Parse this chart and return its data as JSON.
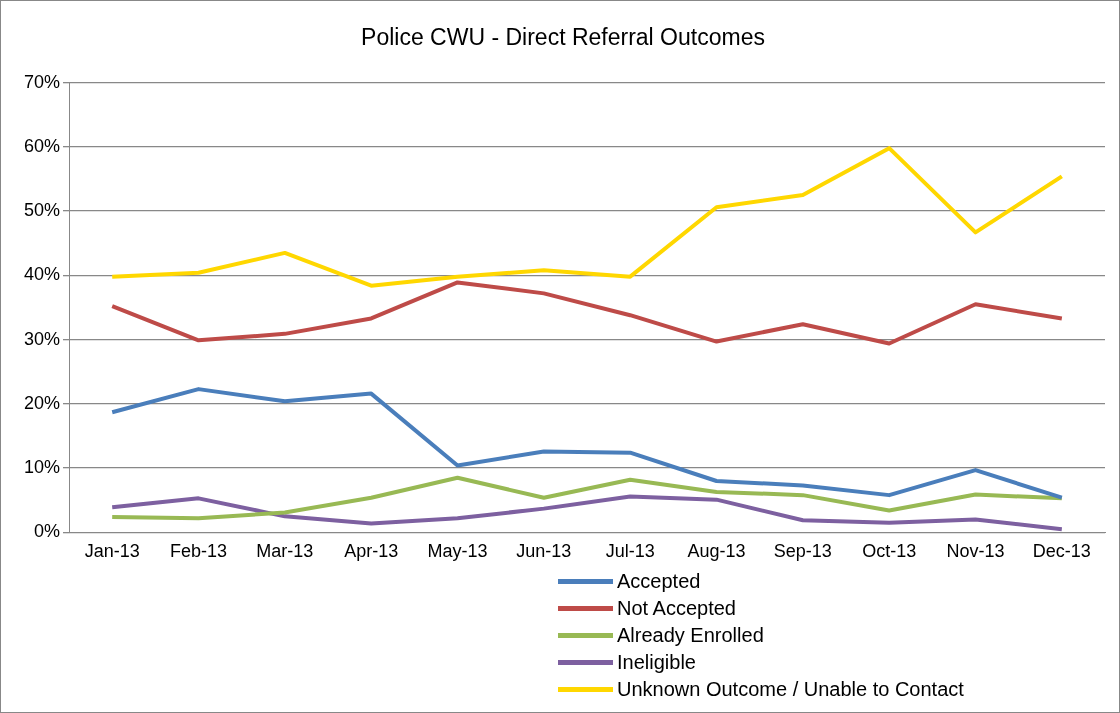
{
  "chart_data": {
    "type": "line",
    "title": "Police CWU - Direct Referral Outcomes",
    "categories": [
      "Jan-13",
      "Feb-13",
      "Mar-13",
      "Apr-13",
      "May-13",
      "Jun-13",
      "Jul-13",
      "Aug-13",
      "Sep-13",
      "Oct-13",
      "Nov-13",
      "Dec-13"
    ],
    "series": [
      {
        "name": "Accepted",
        "color": "#4a7ebb",
        "values": [
          18.7,
          22.3,
          20.4,
          21.6,
          10.4,
          12.6,
          12.4,
          8.0,
          7.3,
          5.8,
          9.7,
          5.4
        ]
      },
      {
        "name": "Not Accepted",
        "color": "#be4b48",
        "values": [
          35.2,
          29.9,
          30.9,
          33.3,
          38.9,
          37.2,
          33.8,
          29.7,
          32.4,
          29.4,
          35.5,
          33.3
        ]
      },
      {
        "name": "Already Enrolled",
        "color": "#98b954",
        "values": [
          2.4,
          2.2,
          3.1,
          5.4,
          8.5,
          5.4,
          8.2,
          6.3,
          5.8,
          3.4,
          5.9,
          5.3
        ]
      },
      {
        "name": "Ineligible",
        "color": "#7d60a0",
        "values": [
          3.9,
          5.3,
          2.5,
          1.4,
          2.2,
          3.7,
          5.6,
          5.1,
          1.9,
          1.5,
          2.0,
          0.5
        ]
      },
      {
        "name": "Unknown Outcome / Unable to Contact",
        "color": "#ffd700",
        "values": [
          39.8,
          40.4,
          43.5,
          38.4,
          39.8,
          40.8,
          39.8,
          50.6,
          52.5,
          59.8,
          46.7,
          55.4
        ]
      }
    ],
    "ylim": [
      0,
      70
    ],
    "yticks": [
      {
        "value": 0,
        "label": "0%"
      },
      {
        "value": 10,
        "label": "10%"
      },
      {
        "value": 20,
        "label": "20%"
      },
      {
        "value": 30,
        "label": "30%"
      },
      {
        "value": 40,
        "label": "40%"
      },
      {
        "value": 50,
        "label": "50%"
      },
      {
        "value": 60,
        "label": "60%"
      },
      {
        "value": 70,
        "label": "70%"
      }
    ],
    "grid": "y",
    "legend": "bottom",
    "marker": "none",
    "line_style": "solid"
  }
}
